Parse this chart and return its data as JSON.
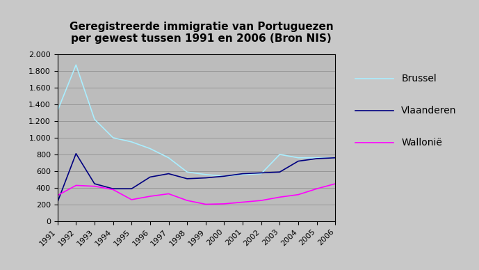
{
  "title": "Geregistreerde immigratie van Portuguezen\nper gewest tussen 1991 en 2006 (Bron NIS)",
  "years": [
    1991,
    1992,
    1993,
    1994,
    1995,
    1996,
    1997,
    1998,
    1999,
    2000,
    2001,
    2002,
    2003,
    2004,
    2005,
    2006
  ],
  "brussel": [
    1320,
    1870,
    1220,
    1000,
    950,
    870,
    760,
    590,
    560,
    540,
    560,
    570,
    800,
    760,
    760,
    760
  ],
  "vlaanderen": [
    230,
    810,
    450,
    390,
    390,
    530,
    570,
    510,
    520,
    540,
    570,
    580,
    590,
    720,
    750,
    760
  ],
  "wallonie": [
    310,
    430,
    420,
    380,
    260,
    300,
    330,
    250,
    205,
    210,
    230,
    250,
    290,
    320,
    390,
    450
  ],
  "brussel_color": "#aaeeff",
  "vlaanderen_color": "#000080",
  "wallonie_color": "#ff00ff",
  "ylim": [
    0,
    2000
  ],
  "yticks": [
    0,
    200,
    400,
    600,
    800,
    1000,
    1200,
    1400,
    1600,
    1800,
    2000
  ],
  "ytick_labels": [
    "0",
    "200",
    "400",
    "600",
    "800",
    "1.000",
    "1.200",
    "1.400",
    "1.600",
    "1.800",
    "2.000"
  ],
  "plot_bg_color": "#bcbcbc",
  "fig_bg_color_left": "#c8c8c8",
  "legend_labels": [
    "Brussel",
    "Vlaanderen",
    "Wallonië"
  ],
  "title_fontsize": 11,
  "legend_fontsize": 10,
  "tick_fontsize": 8,
  "linewidth": 1.2
}
